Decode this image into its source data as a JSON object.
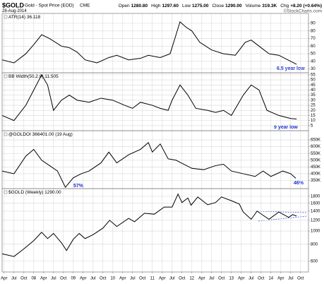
{
  "header": {
    "symbol": "$GOLD",
    "name": "Gold - Spot Price (EOD)",
    "exchange": "CME",
    "date": "28-Aug-2014",
    "watermark": "©StockCharts.com",
    "quote": [
      {
        "label": "Open",
        "value": "1280.80"
      },
      {
        "label": "High",
        "value": "1297.60"
      },
      {
        "label": "Low",
        "value": "1275.00"
      },
      {
        "label": "Close",
        "value": "1290.00"
      },
      {
        "label": "Volume",
        "value": "319.3K"
      },
      {
        "label": "Chg",
        "value": "+8.20 (+0.64%)"
      }
    ]
  },
  "chart_data": [
    {
      "type": "line",
      "xlim": [
        2007.2,
        2014.95
      ],
      "ylim": [
        25,
        103
      ],
      "yticks": [
        30,
        40,
        50,
        60,
        70,
        80,
        90
      ],
      "grid": true,
      "annotations": [
        "6.5 year low"
      ],
      "series": [
        {
          "name": "ATR(14) 36.118",
          "color": "#000000",
          "x": [
            2007.2,
            2007.5,
            2007.8,
            2008.0,
            2008.2,
            2008.4,
            2008.7,
            2008.9,
            2009.1,
            2009.3,
            2009.6,
            2009.9,
            2010.1,
            2010.4,
            2010.7,
            2010.9,
            2011.2,
            2011.45,
            2011.6,
            2011.7,
            2011.85,
            2012.0,
            2012.2,
            2012.5,
            2012.8,
            2013.1,
            2013.35,
            2013.5,
            2013.7,
            2013.95,
            2014.2,
            2014.5,
            2014.65
          ],
          "values": [
            42,
            38,
            50,
            62,
            75,
            70,
            60,
            58,
            52,
            42,
            38,
            45,
            48,
            42,
            44,
            48,
            45,
            50,
            75,
            92,
            85,
            80,
            65,
            55,
            50,
            48,
            65,
            68,
            60,
            50,
            48,
            40,
            36.118
          ]
        }
      ]
    },
    {
      "type": "line",
      "xlim": [
        2007.2,
        2014.95
      ],
      "ylim": [
        0,
        57
      ],
      "yticks": [
        5,
        10,
        15,
        20,
        25,
        30,
        35,
        40,
        45,
        50,
        55
      ],
      "grid": true,
      "annotations": [
        "9 year low"
      ],
      "series": [
        {
          "name": "BB Width(50,2.0) 11.505",
          "color": "#000000",
          "x": [
            2007.2,
            2007.5,
            2007.8,
            2008.0,
            2008.2,
            2008.35,
            2008.5,
            2008.7,
            2008.9,
            2009.1,
            2009.4,
            2009.7,
            2010.0,
            2010.3,
            2010.5,
            2010.7,
            2011.0,
            2011.2,
            2011.4,
            2011.5,
            2011.7,
            2011.9,
            2012.1,
            2012.4,
            2012.6,
            2012.8,
            2013.0,
            2013.3,
            2013.5,
            2013.7,
            2013.9,
            2014.2,
            2014.5,
            2014.65
          ],
          "values": [
            15,
            10,
            25,
            40,
            55,
            45,
            20,
            30,
            35,
            30,
            28,
            32,
            30,
            25,
            22,
            28,
            25,
            22,
            20,
            30,
            45,
            35,
            22,
            20,
            18,
            20,
            15,
            35,
            45,
            40,
            20,
            15,
            12,
            11.505
          ]
        }
      ]
    },
    {
      "type": "line",
      "xlim": [
        2007.2,
        2014.95
      ],
      "ylim": [
        290000,
        718000
      ],
      "grid": true,
      "annotations": [
        "57%",
        "46%"
      ],
      "yticks": [
        {
          "value": 350000,
          "label": "350K"
        },
        {
          "value": 400000,
          "label": "400K"
        },
        {
          "value": 450000,
          "label": "450K"
        },
        {
          "value": 500000,
          "label": "500K"
        },
        {
          "value": 550000,
          "label": "550K"
        },
        {
          "value": 600000,
          "label": "600K"
        },
        {
          "value": 650000,
          "label": "650K"
        }
      ],
      "series": [
        {
          "name": "@GOLDOI 366401.00 (19 Aug)",
          "color": "#000000",
          "x": [
            2007.2,
            2007.5,
            2007.8,
            2008.0,
            2008.2,
            2008.4,
            2008.6,
            2008.8,
            2009.0,
            2009.2,
            2009.4,
            2009.7,
            2009.9,
            2010.1,
            2010.4,
            2010.7,
            2010.9,
            2011.0,
            2011.2,
            2011.4,
            2011.6,
            2011.8,
            2012.0,
            2012.3,
            2012.6,
            2012.8,
            2013.0,
            2013.3,
            2013.6,
            2013.8,
            2014.0,
            2014.3,
            2014.5,
            2014.63
          ],
          "values": [
            420000,
            400000,
            530000,
            580000,
            500000,
            460000,
            420000,
            300000,
            370000,
            400000,
            420000,
            480000,
            560000,
            480000,
            540000,
            580000,
            630000,
            560000,
            620000,
            510000,
            500000,
            470000,
            440000,
            430000,
            460000,
            470000,
            420000,
            400000,
            380000,
            420000,
            380000,
            420000,
            400000,
            366401
          ]
        }
      ]
    },
    {
      "type": "line",
      "xlim": [
        2007.2,
        2014.95
      ],
      "ylim": [
        500,
        2050
      ],
      "log": true,
      "yticks": [
        600,
        800,
        1000,
        1200,
        1400,
        1600,
        1800
      ],
      "grid": true,
      "xticks": [
        {
          "value": 2007.25,
          "label": "Apr"
        },
        {
          "value": 2007.5,
          "label": "Jul"
        },
        {
          "value": 2007.75,
          "label": "Oct"
        },
        {
          "value": 2008,
          "label": "08"
        },
        {
          "value": 2008.25,
          "label": "Apr"
        },
        {
          "value": 2008.5,
          "label": "Jul"
        },
        {
          "value": 2008.75,
          "label": "Oct"
        },
        {
          "value": 2009,
          "label": "09"
        },
        {
          "value": 2009.25,
          "label": "Apr"
        },
        {
          "value": 2009.5,
          "label": "Jul"
        },
        {
          "value": 2009.75,
          "label": "Oct"
        },
        {
          "value": 2010,
          "label": "10"
        },
        {
          "value": 2010.25,
          "label": "Apr"
        },
        {
          "value": 2010.5,
          "label": "Jul"
        },
        {
          "value": 2010.75,
          "label": "Oct"
        },
        {
          "value": 2011,
          "label": "11"
        },
        {
          "value": 2011.25,
          "label": "Apr"
        },
        {
          "value": 2011.5,
          "label": "Jul"
        },
        {
          "value": 2011.75,
          "label": "Oct"
        },
        {
          "value": 2012,
          "label": "12"
        },
        {
          "value": 2012.25,
          "label": "Apr"
        },
        {
          "value": 2012.5,
          "label": "Jul"
        },
        {
          "value": 2012.75,
          "label": "Oct"
        },
        {
          "value": 2013,
          "label": "13"
        },
        {
          "value": 2013.25,
          "label": "Apr"
        },
        {
          "value": 2013.5,
          "label": "Jul"
        },
        {
          "value": 2013.75,
          "label": "Oct"
        },
        {
          "value": 2014,
          "label": "14"
        },
        {
          "value": 2014.25,
          "label": "Apr"
        },
        {
          "value": 2014.5,
          "label": "Jul"
        },
        {
          "value": 2014.75,
          "label": "Oct"
        }
      ],
      "series": [
        {
          "name": "$GOLD (Weekly) 1290.00",
          "color": "#000000",
          "x": [
            2007.2,
            2007.5,
            2007.75,
            2008.0,
            2008.2,
            2008.35,
            2008.5,
            2008.7,
            2008.83,
            2009.0,
            2009.15,
            2009.3,
            2009.5,
            2009.75,
            2009.92,
            2010.1,
            2010.4,
            2010.55,
            2010.8,
            2011.05,
            2011.3,
            2011.5,
            2011.65,
            2011.75,
            2011.9,
            2011.98,
            2012.15,
            2012.4,
            2012.6,
            2012.75,
            2013.0,
            2013.2,
            2013.3,
            2013.5,
            2013.65,
            2013.95,
            2014.2,
            2014.45,
            2014.55,
            2014.65
          ],
          "values": [
            680,
            650,
            740,
            850,
            980,
            880,
            960,
            820,
            720,
            870,
            960,
            880,
            940,
            1050,
            1200,
            1080,
            1240,
            1170,
            1350,
            1330,
            1500,
            1500,
            1870,
            1620,
            1750,
            1550,
            1780,
            1560,
            1620,
            1780,
            1670,
            1580,
            1380,
            1220,
            1400,
            1220,
            1380,
            1260,
            1320,
            1290
          ]
        }
      ]
    }
  ]
}
